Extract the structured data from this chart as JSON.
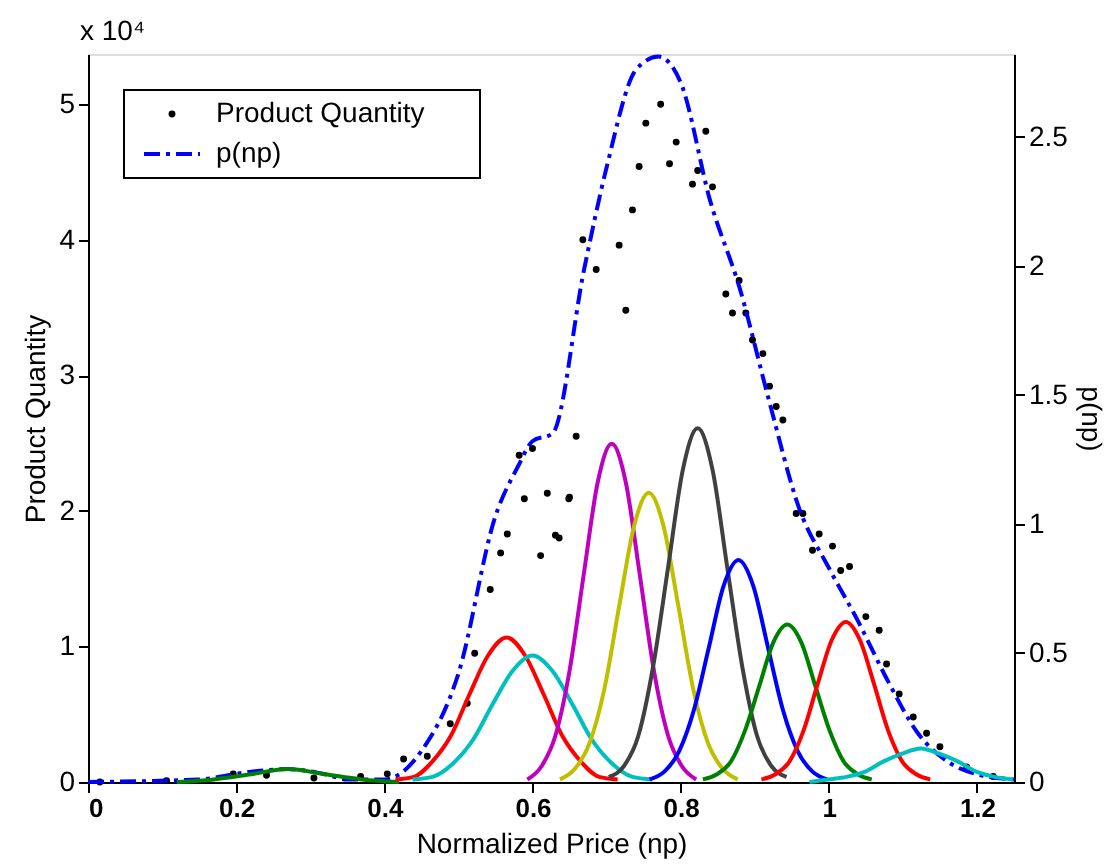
{
  "chart_data": {
    "type": "line",
    "xlabel": "Normalized  Price (np)",
    "ylabel": "Product Quantity",
    "y2label": "p(np)",
    "annotations": [
      "x 10⁴"
    ],
    "xlim": [
      0,
      1.25
    ],
    "xticks": [
      0,
      0.2,
      0.4,
      0.6,
      0.8,
      1,
      1.2
    ],
    "ylim": [
      0,
      5.37
    ],
    "yticks": [
      0,
      1,
      2,
      3,
      4,
      5
    ],
    "y2lim": [
      0,
      2.82
    ],
    "y2ticks": [
      0,
      0.5,
      1,
      1.5,
      2,
      2.5
    ],
    "grid": false,
    "legend": "top left",
    "series": [
      {
        "name": "Product Quantity",
        "type": "scatter",
        "marker": "circle",
        "color": "#000000",
        "x": [
          0.016,
          0.106,
          0.196,
          0.241,
          0.305,
          0.368,
          0.404,
          0.426,
          0.458,
          0.489,
          0.512,
          0.522,
          0.543,
          0.557,
          0.566,
          0.582,
          0.589,
          0.6,
          0.611,
          0.62,
          0.631,
          0.636,
          0.649,
          0.65,
          0.659,
          0.668,
          0.686,
          0.717,
          0.726,
          0.735,
          0.744,
          0.753,
          0.773,
          0.785,
          0.794,
          0.816,
          0.823,
          0.834,
          0.843,
          0.861,
          0.87,
          0.879,
          0.888,
          0.897,
          0.911,
          0.92,
          0.929,
          0.938,
          0.956,
          0.965,
          0.978,
          0.987,
          1.005,
          1.016,
          1.028,
          1.05,
          1.068,
          1.078,
          1.095,
          1.114,
          1.132,
          1.15,
          1.186,
          1.222
        ],
        "values": [
          0,
          0.01,
          0.06,
          0.05,
          0.03,
          0.04,
          0.06,
          0.17,
          0.19,
          0.43,
          0.58,
          0.95,
          1.42,
          1.69,
          1.83,
          2.41,
          2.09,
          2.46,
          1.67,
          2.13,
          1.82,
          1.8,
          2.09,
          2.1,
          2.55,
          4.0,
          3.78,
          3.96,
          3.48,
          4.22,
          4.54,
          4.86,
          5.0,
          4.56,
          4.72,
          4.41,
          4.51,
          4.8,
          4.39,
          3.6,
          3.46,
          3.7,
          3.46,
          3.26,
          3.16,
          2.92,
          2.77,
          2.67,
          1.98,
          1.98,
          1.71,
          1.83,
          1.74,
          1.56,
          1.59,
          1.22,
          1.12,
          0.87,
          0.65,
          0.48,
          0.36,
          0.26,
          0.11,
          0.04
        ]
      },
      {
        "name": "p(np)",
        "axis": "y2",
        "line_style": "dashed",
        "color": "#0000ff",
        "x": [
          0,
          0.15,
          0.22,
          0.27,
          0.32,
          0.35,
          0.4,
          0.45,
          0.5,
          0.55,
          0.58,
          0.6,
          0.627,
          0.67,
          0.7,
          0.74,
          0.77,
          0.8,
          0.84,
          0.88,
          0.92,
          0.96,
          1,
          1.04,
          1.08,
          1.12,
          1.16,
          1.2,
          1.25
        ],
        "values": [
          0,
          0.01,
          0.04,
          0.05,
          0.03,
          0.01,
          0.01,
          0.12,
          0.42,
          1.03,
          1.22,
          1.32,
          1.35,
          1.99,
          2.38,
          2.76,
          2.81,
          2.71,
          2.25,
          1.91,
          1.47,
          1.06,
          0.83,
          0.62,
          0.39,
          0.19,
          0.08,
          0.03,
          0.01
        ]
      },
      {
        "axis": "y2",
        "color": "#008000",
        "x": [
          0.12,
          0.17,
          0.22,
          0.27,
          0.32,
          0.37,
          0.42
        ],
        "values": [
          0,
          0.01,
          0.03,
          0.05,
          0.03,
          0.01,
          0
        ]
      },
      {
        "axis": "y2",
        "color": "#ff0000",
        "x": [
          0.415,
          0.44,
          0.465,
          0.49,
          0.515,
          0.54,
          0.565,
          0.59,
          0.615,
          0.64,
          0.665,
          0.69,
          0.715
        ],
        "values": [
          0.01,
          0.02,
          0.08,
          0.18,
          0.34,
          0.49,
          0.56,
          0.49,
          0.34,
          0.18,
          0.08,
          0.02,
          0.01
        ]
      },
      {
        "axis": "y2",
        "color": "#00bfbf",
        "x": [
          0.438,
          0.465,
          0.492,
          0.519,
          0.546,
          0.573,
          0.6,
          0.627,
          0.654,
          0.681,
          0.708,
          0.735,
          0.762
        ],
        "values": [
          0.01,
          0.02,
          0.07,
          0.16,
          0.3,
          0.43,
          0.49,
          0.43,
          0.3,
          0.16,
          0.07,
          0.02,
          0.01
        ]
      },
      {
        "axis": "y2",
        "color": "#bf00bf",
        "x": [
          0.593,
          0.612,
          0.631,
          0.65,
          0.669,
          0.688,
          0.707,
          0.726,
          0.745,
          0.764,
          0.783,
          0.802,
          0.821
        ],
        "values": [
          0.01,
          0.06,
          0.18,
          0.43,
          0.8,
          1.16,
          1.31,
          1.16,
          0.8,
          0.43,
          0.18,
          0.06,
          0.01
        ]
      },
      {
        "axis": "y2",
        "color": "#bfbf00",
        "x": [
          0.637,
          0.657,
          0.677,
          0.697,
          0.717,
          0.737,
          0.757,
          0.777,
          0.797,
          0.817,
          0.837,
          0.857,
          0.877
        ],
        "values": [
          0.01,
          0.05,
          0.15,
          0.36,
          0.68,
          0.99,
          1.12,
          0.99,
          0.68,
          0.36,
          0.15,
          0.05,
          0.01
        ]
      },
      {
        "axis": "y2",
        "color": "#404040",
        "x": [
          0.703,
          0.723,
          0.743,
          0.763,
          0.783,
          0.803,
          0.823,
          0.843,
          0.863,
          0.883,
          0.903,
          0.923,
          0.943
        ],
        "values": [
          0.02,
          0.06,
          0.18,
          0.45,
          0.83,
          1.21,
          1.37,
          1.21,
          0.83,
          0.45,
          0.18,
          0.06,
          0.02
        ]
      },
      {
        "axis": "y2",
        "color": "#0000ff",
        "x": [
          0.758,
          0.778,
          0.798,
          0.818,
          0.838,
          0.858,
          0.878,
          0.898,
          0.918,
          0.938,
          0.958,
          0.978,
          0.998
        ],
        "values": [
          0.01,
          0.04,
          0.12,
          0.28,
          0.52,
          0.76,
          0.86,
          0.76,
          0.52,
          0.28,
          0.12,
          0.04,
          0.01
        ]
      },
      {
        "axis": "y2",
        "color": "#008000",
        "x": [
          0.83,
          0.849,
          0.868,
          0.887,
          0.906,
          0.925,
          0.944,
          0.963,
          0.982,
          1.001,
          1.02,
          1.039,
          1.058
        ],
        "values": [
          0.01,
          0.03,
          0.08,
          0.2,
          0.37,
          0.54,
          0.61,
          0.54,
          0.37,
          0.2,
          0.08,
          0.03,
          0.01
        ]
      },
      {
        "axis": "y2",
        "color": "#ff0000",
        "x": [
          0.909,
          0.928,
          0.947,
          0.966,
          0.985,
          1.004,
          1.023,
          1.042,
          1.061,
          1.08,
          1.099,
          1.118,
          1.137
        ],
        "values": [
          0.01,
          0.03,
          0.08,
          0.2,
          0.38,
          0.55,
          0.62,
          0.55,
          0.38,
          0.2,
          0.08,
          0.03,
          0.01
        ]
      },
      {
        "axis": "y2",
        "color": "#00bfbf",
        "x": [
          0.974,
          0.999,
          1.024,
          1.049,
          1.074,
          1.099,
          1.124,
          1.149,
          1.174,
          1.199,
          1.224,
          1.249
        ],
        "values": [
          0,
          0.01,
          0.02,
          0.04,
          0.08,
          0.11,
          0.13,
          0.11,
          0.08,
          0.04,
          0.02,
          0.01
        ]
      }
    ]
  }
}
